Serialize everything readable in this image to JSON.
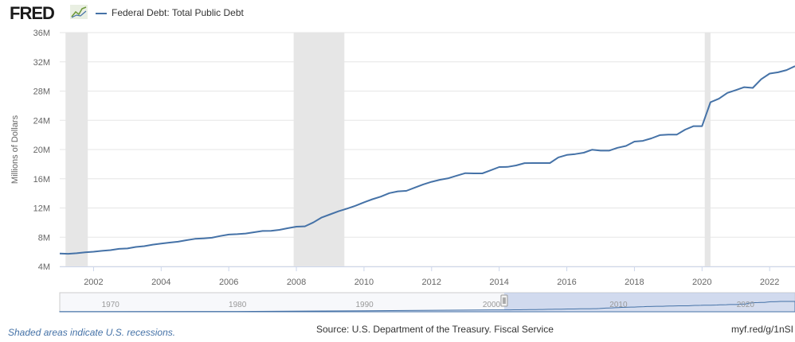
{
  "header": {
    "logo_text": "FRED",
    "logo_icon": "line-chart-icon",
    "legend_label": "Federal Debt: Total Public Debt"
  },
  "footer": {
    "recession_note": "Shaded areas indicate U.S. recessions.",
    "source": "Source: U.S. Department of the Treasury. Fiscal Service",
    "short_url": "myf.red/g/1nSI"
  },
  "colors": {
    "series": "#4572a7",
    "recession": "#e6e6e6",
    "grid": "#e6e6e6",
    "navigator_fill": "#d5ddef",
    "navigator_selection": "#b7c6e6"
  },
  "chart_data": {
    "type": "line",
    "title": "",
    "xlabel": "",
    "ylabel": "Millions of Dollars",
    "ylim": [
      4,
      36
    ],
    "y_unit": "M",
    "xlim": [
      2001.0,
      2022.75
    ],
    "grid": true,
    "legend_position": "top-left",
    "y_ticks": [
      4,
      8,
      12,
      16,
      20,
      24,
      28,
      32,
      36
    ],
    "y_tick_labels": [
      "4M",
      "8M",
      "12M",
      "16M",
      "20M",
      "24M",
      "28M",
      "32M",
      "36M"
    ],
    "x_ticks": [
      "2002",
      "2004",
      "2006",
      "2008",
      "2010",
      "2012",
      "2014",
      "2016",
      "2018",
      "2020",
      "2022"
    ],
    "recessions": [
      {
        "start": 2001.17,
        "end": 2001.83
      },
      {
        "start": 2007.92,
        "end": 2009.42
      },
      {
        "start": 2020.08,
        "end": 2020.25
      }
    ],
    "navigator_ticks": [
      "1970",
      "1980",
      "1990",
      "2000",
      "2010",
      "2020"
    ],
    "series": [
      {
        "name": "Federal Debt: Total Public Debt",
        "x": [
          2001.0,
          2001.25,
          2001.5,
          2001.75,
          2002.0,
          2002.25,
          2002.5,
          2002.75,
          2003.0,
          2003.25,
          2003.5,
          2003.75,
          2004.0,
          2004.25,
          2004.5,
          2004.75,
          2005.0,
          2005.25,
          2005.5,
          2005.75,
          2006.0,
          2006.25,
          2006.5,
          2006.75,
          2007.0,
          2007.25,
          2007.5,
          2007.75,
          2008.0,
          2008.25,
          2008.5,
          2008.75,
          2009.0,
          2009.25,
          2009.5,
          2009.75,
          2010.0,
          2010.25,
          2010.5,
          2010.75,
          2011.0,
          2011.25,
          2011.5,
          2011.75,
          2012.0,
          2012.25,
          2012.5,
          2012.75,
          2013.0,
          2013.25,
          2013.5,
          2013.75,
          2014.0,
          2014.25,
          2014.5,
          2014.75,
          2015.0,
          2015.25,
          2015.5,
          2015.75,
          2016.0,
          2016.25,
          2016.5,
          2016.75,
          2017.0,
          2017.25,
          2017.5,
          2017.75,
          2018.0,
          2018.25,
          2018.5,
          2018.75,
          2019.0,
          2019.25,
          2019.5,
          2019.75,
          2020.0,
          2020.25,
          2020.5,
          2020.75,
          2021.0,
          2021.25,
          2021.5,
          2021.75,
          2022.0,
          2022.25,
          2022.5,
          2022.75
        ],
        "values": [
          5.77,
          5.73,
          5.81,
          5.94,
          6.01,
          6.13,
          6.23,
          6.4,
          6.46,
          6.67,
          6.78,
          6.98,
          7.13,
          7.27,
          7.38,
          7.59,
          7.78,
          7.84,
          7.93,
          8.17,
          8.37,
          8.42,
          8.51,
          8.68,
          8.85,
          8.87,
          9.01,
          9.23,
          9.44,
          9.49,
          10.02,
          10.7,
          11.13,
          11.55,
          11.91,
          12.31,
          12.77,
          13.2,
          13.56,
          14.03,
          14.27,
          14.34,
          14.79,
          15.22,
          15.58,
          15.86,
          16.07,
          16.43,
          16.77,
          16.74,
          16.74,
          17.16,
          17.6,
          17.63,
          17.82,
          18.14,
          18.15,
          18.15,
          18.15,
          18.92,
          19.26,
          19.38,
          19.57,
          19.98,
          19.85,
          19.85,
          20.24,
          20.49,
          21.09,
          21.19,
          21.52,
          21.97,
          22.03,
          22.03,
          22.72,
          23.2,
          23.2,
          26.48,
          26.95,
          27.75,
          28.13,
          28.53,
          28.43,
          29.62,
          30.4,
          30.57,
          30.87,
          31.42
        ]
      }
    ]
  }
}
